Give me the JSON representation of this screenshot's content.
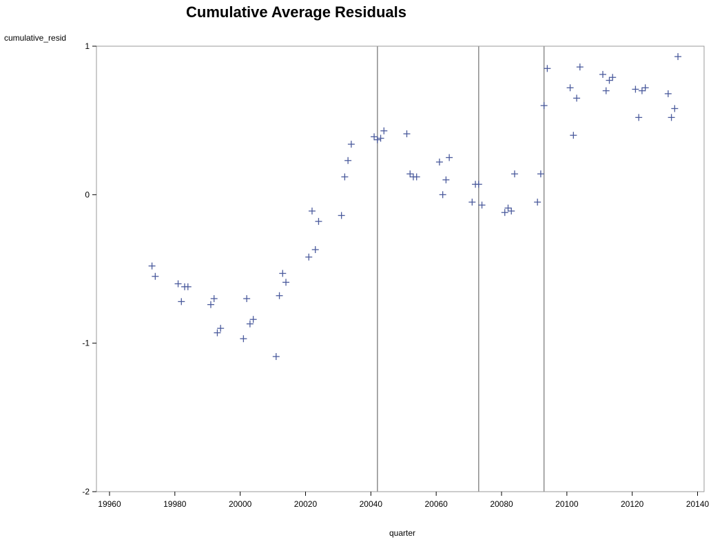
{
  "chart_data": {
    "type": "scatter",
    "title": "Cumulative Average Residuals",
    "xlabel": "quarter",
    "ylabel": "cumulative_resid",
    "xlim": [
      19956,
      20142
    ],
    "ylim": [
      -2,
      1
    ],
    "xticks": [
      "19960",
      "19980",
      "20000",
      "20020",
      "20040",
      "20060",
      "20080",
      "20100",
      "20120",
      "20140"
    ],
    "yticks": [
      "-2",
      "-1",
      "0",
      "1"
    ],
    "reference_lines_x": [
      20042,
      20073,
      20093
    ],
    "marker": "+",
    "grid": false,
    "colors": {
      "marker": "#4a5a9c",
      "refline": "#8c8c8c",
      "frame": "#9a9a9a"
    },
    "x": [
      19973,
      19974,
      19981,
      19982,
      19983,
      19984,
      19991,
      19992,
      19993,
      19994,
      20001,
      20002,
      20003,
      20004,
      20011,
      20012,
      20013,
      20014,
      20021,
      20022,
      20023,
      20024,
      20031,
      20032,
      20033,
      20034,
      20041,
      20042,
      20043,
      20044,
      20051,
      20052,
      20053,
      20054,
      20061,
      20062,
      20063,
      20064,
      20071,
      20072,
      20073,
      20074,
      20081,
      20082,
      20083,
      20084,
      20091,
      20092,
      20093,
      20094,
      20101,
      20102,
      20103,
      20104,
      20111,
      20112,
      20113,
      20114,
      20121,
      20122,
      20123,
      20124,
      20131,
      20132,
      20133,
      20134
    ],
    "y": [
      -0.48,
      -0.55,
      -0.6,
      -0.72,
      -0.62,
      -0.62,
      -0.74,
      -0.7,
      -0.93,
      -0.9,
      -0.97,
      -0.7,
      -0.87,
      -0.84,
      -1.09,
      -0.68,
      -0.53,
      -0.59,
      -0.42,
      -0.11,
      -0.37,
      -0.18,
      -0.14,
      0.12,
      0.23,
      0.34,
      0.39,
      0.37,
      0.38,
      0.43,
      0.41,
      0.14,
      0.12,
      0.12,
      0.22,
      0.0,
      0.1,
      0.25,
      -0.05,
      0.07,
      0.07,
      -0.07,
      -0.12,
      -0.09,
      -0.11,
      0.14,
      -0.05,
      0.14,
      0.6,
      0.85,
      0.72,
      0.4,
      0.65,
      0.86,
      0.81,
      0.7,
      0.77,
      0.79,
      0.71,
      0.52,
      0.7,
      0.72,
      0.68,
      0.52,
      0.58,
      0.93
    ]
  }
}
